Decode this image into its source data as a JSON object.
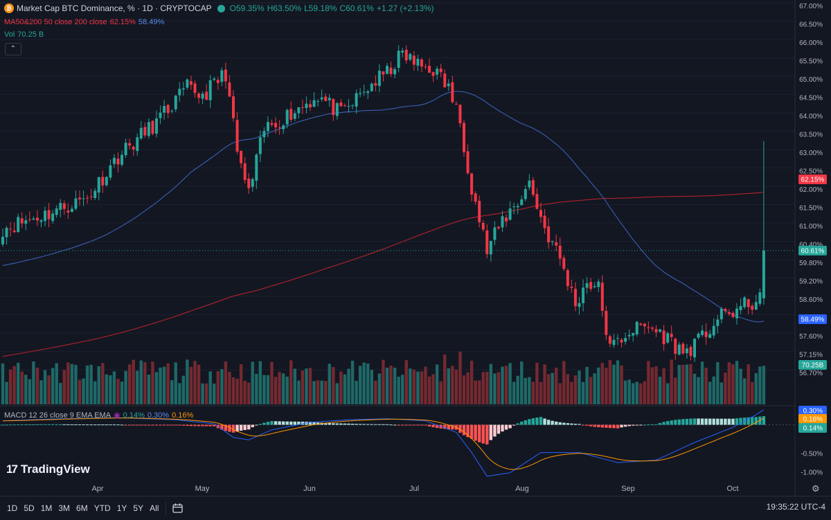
{
  "header": {
    "title": "Market Cap BTC Dominance, % · 1D · CRYPTOCAP",
    "ohlc": {
      "open": "O59.35%",
      "high": "H63.50%",
      "low": "L59.18%",
      "close": "C60.61%",
      "change": "+1.27 (+2.13%)"
    },
    "coin_symbol": "₿"
  },
  "ma_legend": {
    "label": "MA50&200 50 close 200 close",
    "ma200_value": "62.15%",
    "ma50_value": "58.49%"
  },
  "vol_legend": {
    "label": "Vol",
    "value": "70.25 B"
  },
  "macd_legend": {
    "label": "MACD 12 26 close 9 EMA EMA",
    "hist_value": "0.14%",
    "macd_value": "0.30%",
    "signal_value": "0.16%"
  },
  "collapse_icon": "chevron-up-icon",
  "logo": {
    "text": "TradingView"
  },
  "timeframes": [
    "1D",
    "5D",
    "1M",
    "3M",
    "6M",
    "YTD",
    "1Y",
    "5Y",
    "All"
  ],
  "clock": "19:35:22 UTC-4",
  "colors": {
    "up": "#26a69a",
    "down": "#f23645",
    "ma50": "#2962ff",
    "ma200": "#b2222b",
    "macd": "#2962ff",
    "signal": "#ff9800",
    "background": "#131722"
  },
  "chart_data": {
    "type": "candlestick",
    "title": "Market Cap BTC Dominance, % · 1D · CRYPTOCAP",
    "x_ticks": [
      "Apr",
      "May",
      "Jun",
      "Jul",
      "Aug",
      "Sep",
      "Oct"
    ],
    "y_ticks": [
      "67.00%",
      "66.50%",
      "66.00%",
      "65.50%",
      "65.00%",
      "64.50%",
      "64.00%",
      "63.50%",
      "63.00%",
      "62.50%",
      "62.00%",
      "61.50%",
      "61.00%",
      "60.40%",
      "59.80%",
      "59.20%",
      "58.60%",
      "58.10%",
      "57.60%",
      "57.15%",
      "56.70%"
    ],
    "y_range": [
      56.55,
      67.15
    ],
    "close_anchors": [
      [
        0,
        61.2
      ],
      [
        12,
        61.6
      ],
      [
        22,
        62.0
      ],
      [
        30,
        63.1
      ],
      [
        40,
        64.0
      ],
      [
        48,
        64.9
      ],
      [
        52,
        64.7
      ],
      [
        58,
        65.3
      ],
      [
        61,
        63.2
      ],
      [
        64,
        62.1
      ],
      [
        68,
        63.8
      ],
      [
        76,
        64.3
      ],
      [
        82,
        64.7
      ],
      [
        88,
        64.2
      ],
      [
        92,
        64.6
      ],
      [
        96,
        65.0
      ],
      [
        100,
        65.3
      ],
      [
        104,
        65.8
      ],
      [
        108,
        65.5
      ],
      [
        112,
        65.4
      ],
      [
        116,
        64.9
      ],
      [
        119,
        64.0
      ],
      [
        122,
        62.3
      ],
      [
        126,
        60.6
      ],
      [
        130,
        61.4
      ],
      [
        134,
        61.9
      ],
      [
        137,
        62.4
      ],
      [
        141,
        61.2
      ],
      [
        145,
        60.4
      ],
      [
        149,
        59.2
      ],
      [
        152,
        59.8
      ],
      [
        155,
        59.6
      ],
      [
        158,
        58.0
      ],
      [
        163,
        58.5
      ],
      [
        168,
        58.6
      ],
      [
        173,
        58.3
      ],
      [
        177,
        57.9
      ],
      [
        181,
        58.2
      ],
      [
        186,
        58.8
      ],
      [
        190,
        59.0
      ],
      [
        194,
        59.2
      ],
      [
        197,
        59.3
      ],
      [
        198,
        60.61
      ]
    ],
    "last_candle": {
      "open": 59.35,
      "high": 63.5,
      "low": 59.18,
      "close": 60.61
    },
    "ma50_last": 58.49,
    "ma200_last": 62.15,
    "volume_last": "70.25B",
    "macd_ticks": [
      "0.30%",
      "0.16%",
      "0.14%",
      "-0.50%",
      "-1.00%"
    ],
    "macd_range": [
      -1.05,
      0.35
    ],
    "macd_anchors": [
      [
        0,
        0.08
      ],
      [
        15,
        0.12
      ],
      [
        30,
        0.14
      ],
      [
        45,
        0.1
      ],
      [
        55,
        0.02
      ],
      [
        60,
        -0.25
      ],
      [
        64,
        -0.3
      ],
      [
        70,
        -0.1
      ],
      [
        80,
        0.05
      ],
      [
        90,
        0.1
      ],
      [
        100,
        0.12
      ],
      [
        110,
        0.08
      ],
      [
        118,
        -0.15
      ],
      [
        122,
        -0.55
      ],
      [
        126,
        -1.02
      ],
      [
        132,
        -0.95
      ],
      [
        140,
        -0.55
      ],
      [
        150,
        -0.55
      ],
      [
        160,
        -0.75
      ],
      [
        170,
        -0.7
      ],
      [
        180,
        -0.35
      ],
      [
        190,
        -0.05
      ],
      [
        196,
        0.2
      ],
      [
        198,
        0.3
      ]
    ]
  }
}
